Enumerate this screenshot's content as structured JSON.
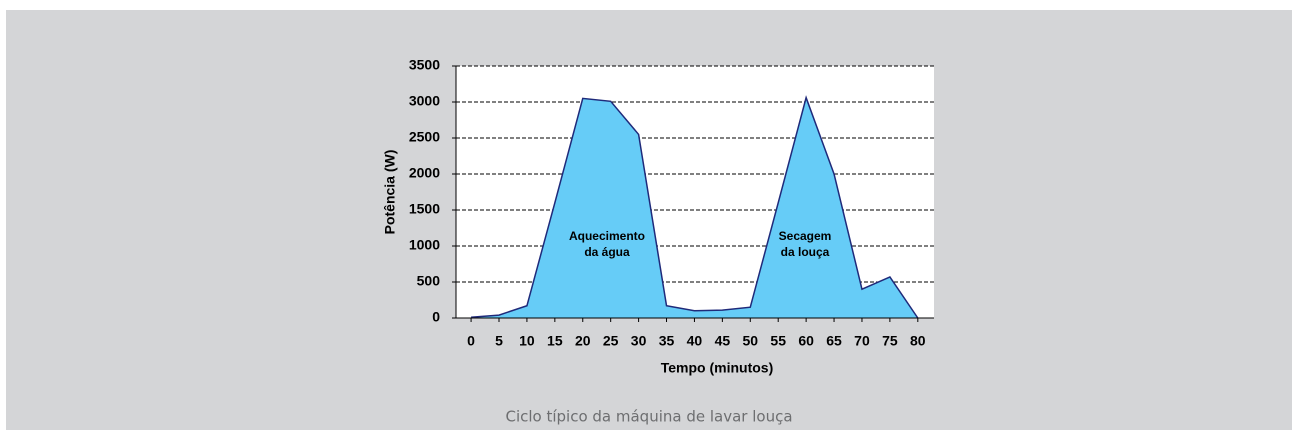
{
  "chart_data": {
    "type": "area",
    "caption": "Ciclo típico da máquina de lavar louça",
    "x_label": "Tempo (minutos)",
    "y_label": "Potência (W)",
    "x": [
      0,
      5,
      10,
      15,
      20,
      25,
      30,
      35,
      40,
      45,
      50,
      55,
      60,
      65,
      70,
      75,
      80
    ],
    "values": [
      10,
      40,
      170,
      1600,
      3050,
      3010,
      2550,
      170,
      100,
      110,
      150,
      1600,
      3060,
      2000,
      400,
      570,
      0
    ],
    "color": "#66ccf7",
    "line_color": "#1f2a7a",
    "annotations": [
      [
        "Aquecimento",
        "da água"
      ],
      [
        "Secagem",
        "da louça"
      ]
    ],
    "xlim": [
      -2.7,
      82.9
    ],
    "xticks": [
      0,
      5,
      10,
      15,
      20,
      25,
      30,
      35,
      40,
      45,
      50,
      55,
      60,
      65,
      70,
      75,
      80
    ],
    "ylim": [
      0,
      3500
    ],
    "yticks": [
      0,
      500,
      1000,
      1500,
      2000,
      2500,
      3000,
      3500
    ],
    "grid": true
  }
}
